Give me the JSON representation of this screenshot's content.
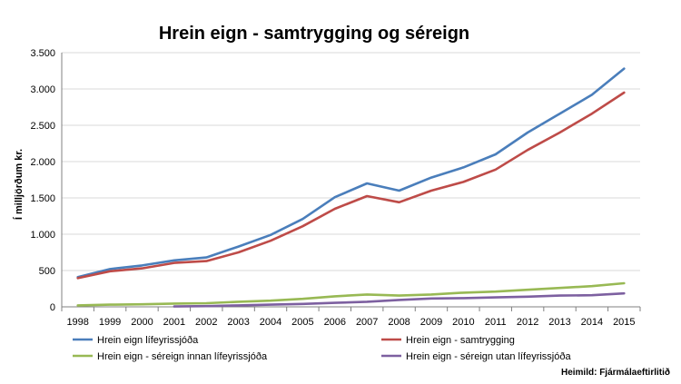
{
  "chart_data": {
    "type": "line",
    "title": "Hrein eign - samtrygging og séreign",
    "ylabel": "Í milljörðum kr.",
    "xlabel": "",
    "source": "Heimild: Fjármálaeftirlitið",
    "ylim": [
      0,
      3500
    ],
    "yticks": [
      0,
      500,
      1000,
      1500,
      2000,
      2500,
      3000,
      3500
    ],
    "ytick_labels": [
      "0",
      "500",
      "1.000",
      "1.500",
      "2.000",
      "2.500",
      "3.000",
      "3.500"
    ],
    "grid": true,
    "legend_placement": "bottom",
    "categories": [
      "1998",
      "1999",
      "2000",
      "2001",
      "2002",
      "2003",
      "2004",
      "2005",
      "2006",
      "2007",
      "2008",
      "2009",
      "2010",
      "2011",
      "2012",
      "2013",
      "2014",
      "2015"
    ],
    "series": [
      {
        "name": "Hrein eign lífeyrissjóða",
        "color": "#4A7EBB",
        "values": [
          410,
          520,
          570,
          640,
          680,
          830,
          990,
          1210,
          1510,
          1700,
          1600,
          1780,
          1920,
          2100,
          2400,
          2660,
          2920,
          3280
        ]
      },
      {
        "name": "Hrein eign - samtrygging",
        "color": "#BE4B48",
        "values": [
          395,
          490,
          530,
          605,
          630,
          750,
          910,
          1110,
          1350,
          1525,
          1440,
          1600,
          1720,
          1890,
          2160,
          2400,
          2660,
          2950
        ]
      },
      {
        "name": "Hrein eign - séreign innan lífeyrissjóða",
        "color": "#98B954",
        "values": [
          20,
          30,
          35,
          45,
          50,
          70,
          85,
          110,
          145,
          170,
          155,
          170,
          195,
          210,
          235,
          260,
          285,
          325
        ]
      },
      {
        "name": "Hrein eign - séreign utan lífeyrissjóða",
        "color": "#7D60A0",
        "values": [
          null,
          null,
          null,
          5,
          10,
          20,
          30,
          40,
          55,
          70,
          95,
          115,
          120,
          130,
          140,
          155,
          160,
          185
        ]
      }
    ]
  }
}
